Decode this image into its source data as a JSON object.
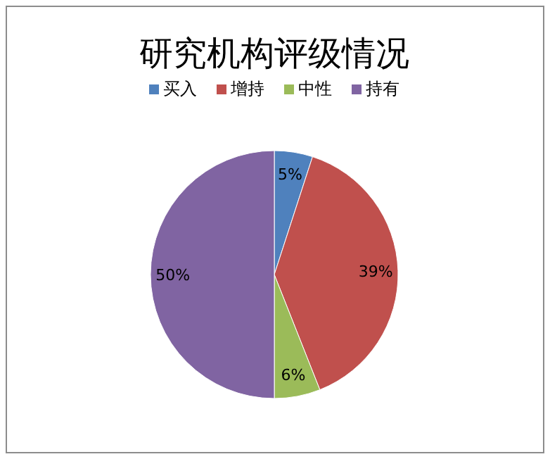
{
  "chart_data": {
    "type": "pie",
    "title": "研究机构评级情况",
    "categories": [
      "买入",
      "增持",
      "中性",
      "持有"
    ],
    "values": [
      5,
      39,
      6,
      50
    ],
    "colors": [
      "#4f81bd",
      "#c0504d",
      "#9bbb59",
      "#8064a2"
    ],
    "value_labels": [
      "5%",
      "39%",
      "6%",
      "50%"
    ],
    "legend": "top"
  }
}
